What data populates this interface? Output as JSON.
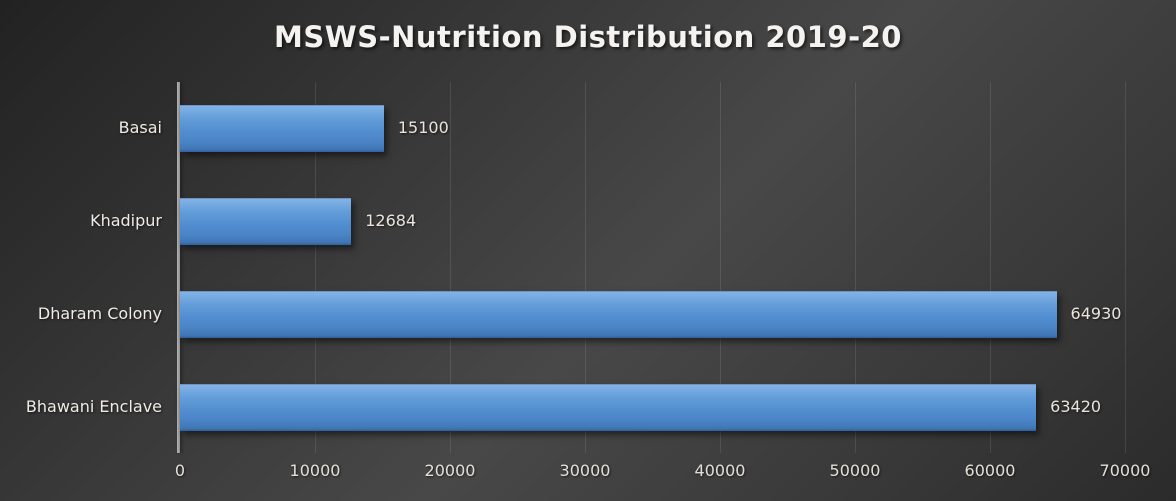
{
  "title": "MSWS-Nutrition Distribution 2019-20",
  "chart_data": {
    "type": "bar",
    "orientation": "horizontal",
    "title": "MSWS-Nutrition Distribution 2019-20",
    "categories": [
      "Basai",
      "Khadipur",
      "Dharam Colony",
      "Bhawani Enclave"
    ],
    "values": [
      15100,
      12684,
      64930,
      63420
    ],
    "data_labels": [
      "15100",
      "12684",
      "64930",
      "63420"
    ],
    "xlabel": "",
    "ylabel": "",
    "xlim": [
      0,
      70000
    ],
    "x_tick_values": [
      0,
      10000,
      20000,
      30000,
      40000,
      50000,
      60000,
      70000
    ],
    "x_tick_labels": [
      "0",
      "10000",
      "20000",
      "30000",
      "40000",
      "50000",
      "60000",
      "70000"
    ],
    "grid": "vertical gridlines on",
    "legend": "none",
    "theme": "dark",
    "colors": {
      "bar_gradient_top": "#82b3e6",
      "bar_gradient_bottom": "#31609b",
      "background_light": "#484848",
      "background_dark": "#222222",
      "gridline": "#4d4d4d",
      "axis_line": "#a0a0a0",
      "label_text": "#e9e5dd",
      "title_text": "#f4f3f1"
    }
  }
}
